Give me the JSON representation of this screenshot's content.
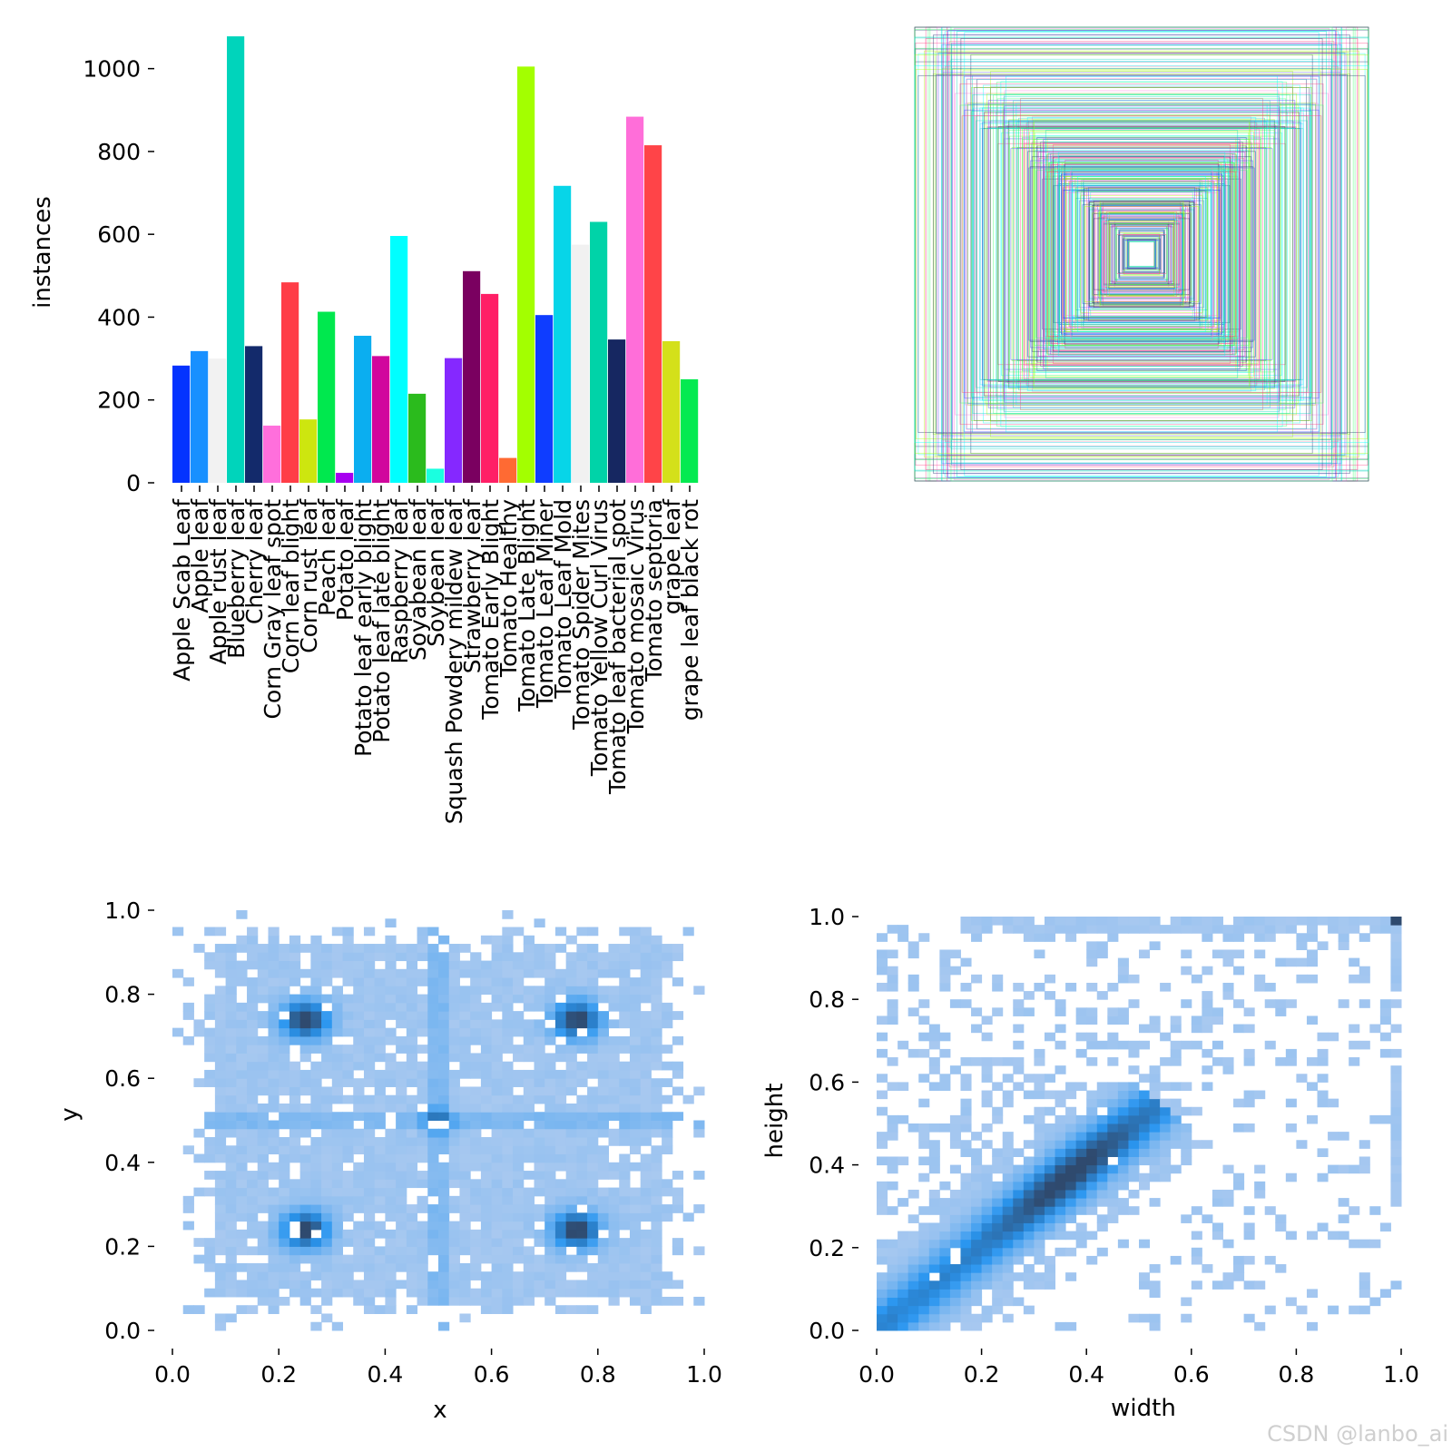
{
  "chart_data": [
    {
      "type": "bar",
      "xlabel": "",
      "ylabel": "instances",
      "ylim": [
        0,
        1100
      ],
      "yticks": [
        0,
        200,
        400,
        600,
        800,
        1000
      ],
      "categories": [
        "Apple Scab Leaf",
        "Apple leaf",
        "Apple rust leaf",
        "Blueberry leaf",
        "Cherry leaf",
        "Corn Gray leaf spot",
        "Corn leaf blight",
        "Corn rust leaf",
        "Peach leaf",
        "Potato leaf",
        "Potato leaf early blight",
        "Potato leaf late blight",
        "Raspberry leaf",
        "Soyabean leaf",
        "Soybean leaf",
        "Squash Powdery mildew leaf",
        "Strawberry leaf",
        "Tomato Early Blight",
        "Tomato Healthy",
        "Tomato Late Blight",
        "Tomato Leaf Miner",
        "Tomato Leaf Mold",
        "Tomato Spider Mites",
        "Tomato Yellow Curl Virus",
        "Tomato leaf bacterial spot",
        "Tomato mosaic Virus",
        "Tomato septoria",
        "grape leaf",
        "grape leaf black rot"
      ],
      "values": [
        283,
        318,
        300,
        1078,
        330,
        138,
        484,
        153,
        413,
        24,
        355,
        306,
        596,
        215,
        34,
        301,
        511,
        456,
        60,
        1005,
        405,
        717,
        575,
        630,
        346,
        884,
        815,
        342,
        250
      ],
      "colors": [
        "#0433ff",
        "#1890ff",
        "#f2f2f2",
        "#00d4bb",
        "#132a6b",
        "#ff6fdc",
        "#ff3d47",
        "#cde60f",
        "#00e84e",
        "#a700f0",
        "#0baef0",
        "#d1079d",
        "#00ffff",
        "#2bbb1d",
        "#1affe0",
        "#8528ff",
        "#7a0060",
        "#ff1f66",
        "#ff6a33",
        "#a3ff00",
        "#0f3dff",
        "#07d5e8",
        "#f1f1f1",
        "#00d3a8",
        "#162761",
        "#ff6ed9",
        "#ff4448",
        "#d4e01a",
        "#04ea51"
      ]
    },
    {
      "type": "bbox-overlay",
      "colors": [
        "#ff3d7f",
        "#00d4bb",
        "#3f3fff",
        "#33ff66",
        "#132a6b",
        "#00ffff",
        "#ff6fdc",
        "#a3ff00"
      ]
    },
    {
      "type": "heatmap",
      "xlabel": "x",
      "ylabel": "y",
      "xlim": [
        0,
        1
      ],
      "ylim": [
        0,
        1
      ],
      "xticks": [
        "0.0",
        "0.2",
        "0.4",
        "0.6",
        "0.8",
        "1.0"
      ],
      "yticks": [
        "0.0",
        "0.2",
        "0.4",
        "0.6",
        "0.8",
        "1.0"
      ],
      "hotspots": [
        {
          "x": 0.25,
          "y": 0.74
        },
        {
          "x": 0.76,
          "y": 0.74
        },
        {
          "x": 0.25,
          "y": 0.24
        },
        {
          "x": 0.76,
          "y": 0.24
        },
        {
          "x": 0.5,
          "y": 0.5
        }
      ],
      "colors": {
        "low": "#b3cdf0",
        "mid": "#2a96f0",
        "high": "#2f4a6e"
      }
    },
    {
      "type": "heatmap",
      "xlabel": "width",
      "ylabel": "height",
      "xlim": [
        0,
        1
      ],
      "ylim": [
        0,
        1
      ],
      "xticks": [
        "0.0",
        "0.2",
        "0.4",
        "0.6",
        "0.8",
        "1.0"
      ],
      "yticks": [
        "0.0",
        "0.2",
        "0.4",
        "0.6",
        "0.8",
        "1.0"
      ],
      "colors": {
        "low": "#b3cdf0",
        "mid": "#2a96f0",
        "high": "#2f4a6e"
      }
    }
  ],
  "watermark": "CSDN @lanbo_ai"
}
